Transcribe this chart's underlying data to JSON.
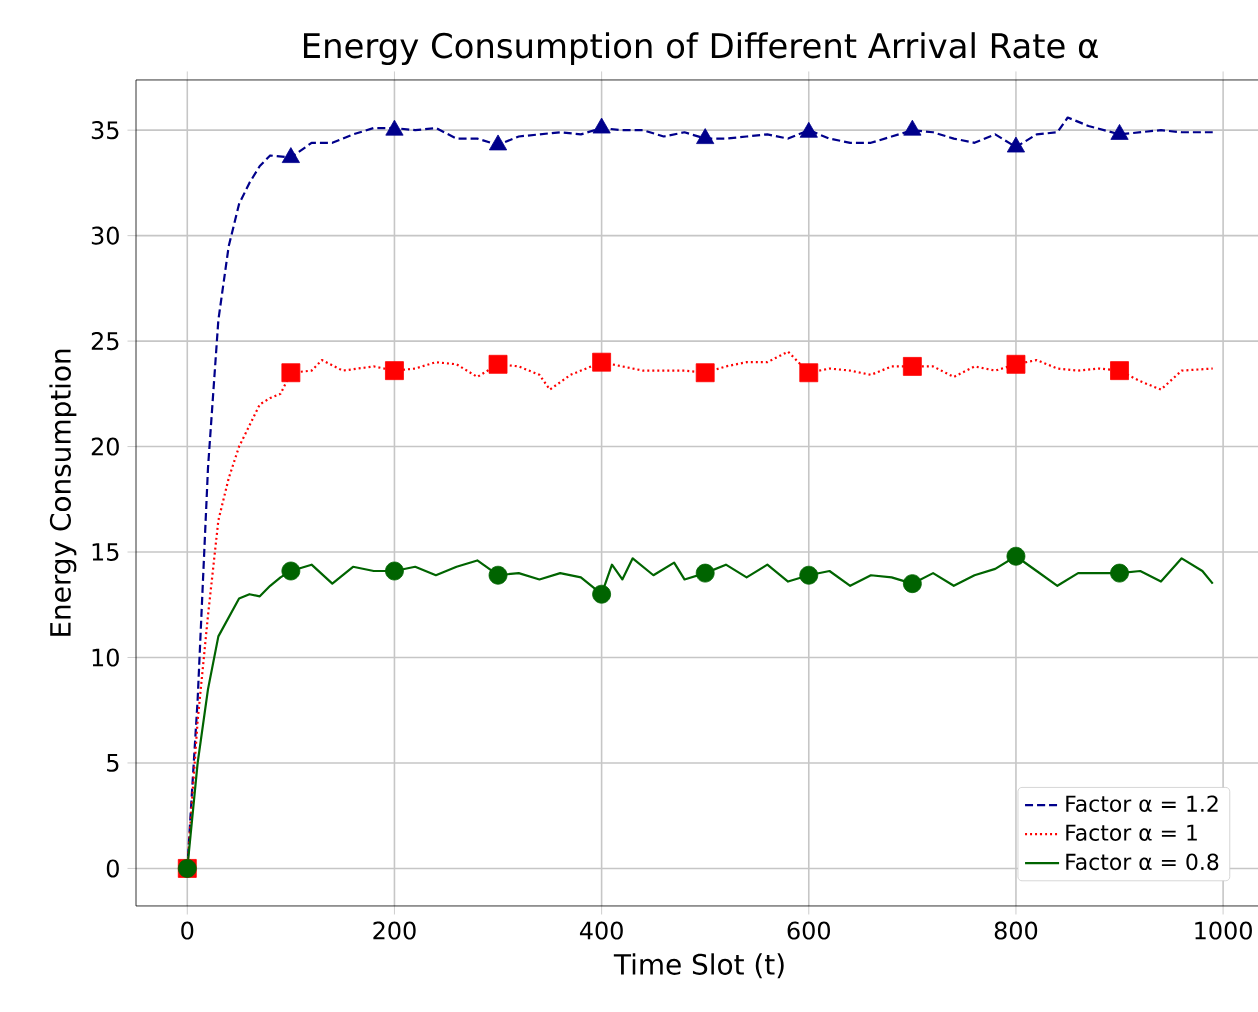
{
  "chart_data": {
    "type": "line",
    "title": "Energy Consumption of Different Arrival Rate α",
    "xlabel": "Time Slot (t)",
    "ylabel": "Energy Consumption",
    "xlim": [
      -49.5,
      1039.5
    ],
    "ylim": [
      -1.78,
      37.38
    ],
    "xticks": [
      0,
      200,
      400,
      600,
      800,
      1000
    ],
    "yticks": [
      0,
      5,
      10,
      15,
      20,
      25,
      30,
      35
    ],
    "grid": true,
    "legend": "bottom right",
    "series": [
      {
        "name": "Factor α = 1.2",
        "line_style": "dashed",
        "color": "#00008b",
        "x": [
          0,
          10,
          20,
          30,
          40,
          50,
          60,
          70,
          80,
          100,
          120,
          140,
          160,
          180,
          200,
          220,
          240,
          260,
          280,
          300,
          320,
          340,
          360,
          380,
          400,
          420,
          440,
          460,
          480,
          500,
          520,
          540,
          560,
          580,
          600,
          620,
          640,
          660,
          680,
          700,
          720,
          740,
          760,
          780,
          800,
          820,
          840,
          850,
          870,
          900,
          920,
          940,
          960,
          990
        ],
        "values": [
          0,
          8,
          19,
          26,
          29.5,
          31.5,
          32.5,
          33.3,
          33.8,
          33.7,
          34.4,
          34.4,
          34.8,
          35.1,
          35.1,
          35.0,
          35.1,
          34.6,
          34.6,
          34.3,
          34.7,
          34.8,
          34.9,
          34.8,
          35.1,
          35.0,
          35.0,
          34.7,
          34.9,
          34.6,
          34.6,
          34.7,
          34.8,
          34.6,
          35.0,
          34.6,
          34.4,
          34.4,
          34.7,
          35.0,
          34.9,
          34.6,
          34.4,
          34.8,
          34.2,
          34.8,
          34.9,
          35.6,
          35.2,
          34.8,
          34.9,
          35.0,
          34.9,
          34.9
        ]
      },
      {
        "name": "Factor α = 1",
        "line_style": "dotted",
        "color": "#ff0000",
        "x": [
          0,
          10,
          20,
          30,
          40,
          50,
          60,
          70,
          80,
          90,
          100,
          120,
          130,
          150,
          180,
          200,
          220,
          240,
          260,
          280,
          300,
          320,
          340,
          350,
          370,
          400,
          420,
          440,
          460,
          480,
          500,
          520,
          540,
          560,
          580,
          600,
          620,
          640,
          660,
          680,
          700,
          720,
          740,
          760,
          780,
          800,
          820,
          840,
          860,
          880,
          900,
          920,
          940,
          960,
          990
        ],
        "values": [
          0,
          7,
          12,
          16.5,
          18.5,
          20,
          21,
          22,
          22.3,
          22.5,
          23.5,
          23.6,
          24.1,
          23.6,
          23.8,
          23.6,
          23.7,
          24.0,
          23.9,
          23.3,
          23.9,
          23.8,
          23.4,
          22.7,
          23.4,
          24.0,
          23.8,
          23.6,
          23.6,
          23.6,
          23.5,
          23.8,
          24.0,
          24.0,
          24.5,
          23.5,
          23.7,
          23.6,
          23.4,
          23.8,
          23.8,
          23.8,
          23.3,
          23.8,
          23.6,
          23.9,
          24.1,
          23.7,
          23.6,
          23.7,
          23.6,
          23.1,
          22.7,
          23.6,
          23.7
        ]
      },
      {
        "name": "Factor α = 0.8",
        "line_style": "solid",
        "color": "#006400",
        "x": [
          0,
          10,
          20,
          30,
          50,
          60,
          70,
          80,
          90,
          100,
          120,
          140,
          160,
          180,
          200,
          220,
          240,
          260,
          280,
          300,
          320,
          340,
          360,
          380,
          400,
          410,
          420,
          430,
          450,
          470,
          480,
          500,
          520,
          540,
          560,
          580,
          600,
          620,
          640,
          660,
          680,
          700,
          720,
          740,
          760,
          780,
          800,
          820,
          840,
          860,
          880,
          900,
          920,
          940,
          960,
          980,
          990
        ],
        "values": [
          0,
          5,
          8.5,
          11,
          12.8,
          13.0,
          12.9,
          13.4,
          13.8,
          14.1,
          14.4,
          13.5,
          14.3,
          14.1,
          14.1,
          14.3,
          13.9,
          14.3,
          14.6,
          13.9,
          14.0,
          13.7,
          14.0,
          13.8,
          13.0,
          14.4,
          13.7,
          14.7,
          13.9,
          14.5,
          13.7,
          14.0,
          14.4,
          13.8,
          14.4,
          13.6,
          13.9,
          14.1,
          13.4,
          13.9,
          13.8,
          13.5,
          14.0,
          13.4,
          13.9,
          14.2,
          14.8,
          14.1,
          13.4,
          14.0,
          14.0,
          14.0,
          14.1,
          13.6,
          14.7,
          14.1,
          13.5
        ]
      },
      {
        "type": "scatter",
        "marker": "triangle",
        "color": "#00008b",
        "x": [
          100,
          200,
          300,
          400,
          500,
          600,
          700,
          800,
          900
        ],
        "values": [
          33.7,
          35.0,
          34.3,
          35.1,
          34.6,
          34.9,
          35.0,
          34.2,
          34.8
        ]
      },
      {
        "type": "scatter",
        "marker": "square",
        "color": "#ff0000",
        "x": [
          0,
          100,
          200,
          300,
          400,
          500,
          600,
          700,
          800,
          900
        ],
        "values": [
          0,
          23.5,
          23.6,
          23.9,
          24.0,
          23.5,
          23.5,
          23.8,
          23.9,
          23.6
        ]
      },
      {
        "type": "scatter",
        "marker": "circle",
        "color": "#006400",
        "x": [
          0,
          100,
          200,
          300,
          400,
          500,
          600,
          700,
          800,
          900
        ],
        "values": [
          0,
          14.1,
          14.1,
          13.9,
          13.0,
          14.0,
          13.9,
          13.5,
          14.8,
          14.0
        ]
      }
    ]
  }
}
